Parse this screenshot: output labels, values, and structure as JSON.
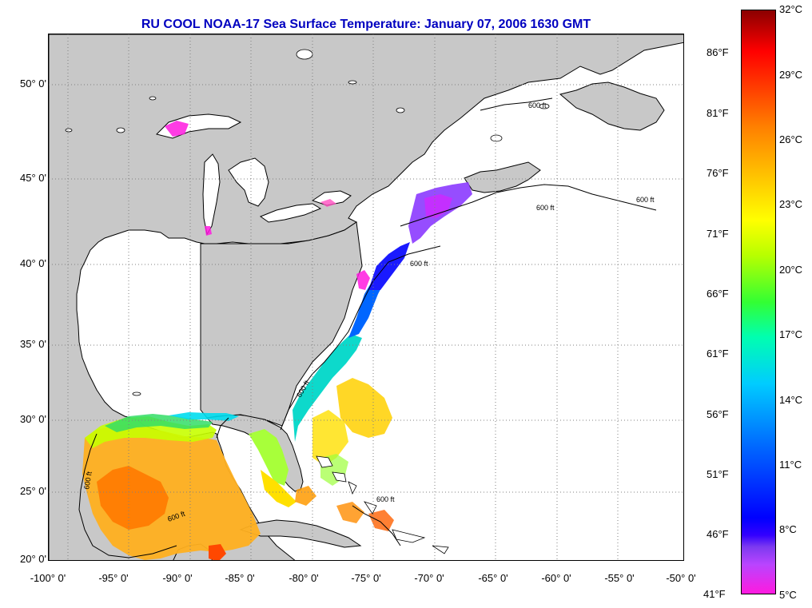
{
  "title": "RU COOL  NOAA-17  Sea Surface Temperature:  January 07, 2006 1630 GMT",
  "map": {
    "lat_labels": [
      "50° 0'",
      "45° 0'",
      "40° 0'",
      "35° 0'",
      "30° 0'",
      "25° 0'",
      "20° 0'"
    ],
    "lon_labels": [
      "-100° 0'",
      "-95° 0'",
      "-90° 0'",
      "-85° 0'",
      "-80° 0'",
      "-75° 0'",
      "-70° 0'",
      "-65° 0'",
      "-60° 0'",
      "-55° 0'",
      "-50° 0'"
    ],
    "isobath_label": "600 ft",
    "colors": {
      "land": "#c8c8c8",
      "water": "#ffffff",
      "grid": "#808080"
    }
  },
  "colorbar": {
    "fahrenheit": [
      "86°F",
      "81°F",
      "76°F",
      "71°F",
      "66°F",
      "61°F",
      "56°F",
      "51°F",
      "46°F",
      "41°F"
    ],
    "celsius": [
      "32°C",
      "29°C",
      "26°C",
      "23°C",
      "20°C",
      "17°C",
      "14°C",
      "11°C",
      "8°C",
      "5°C"
    ]
  }
}
